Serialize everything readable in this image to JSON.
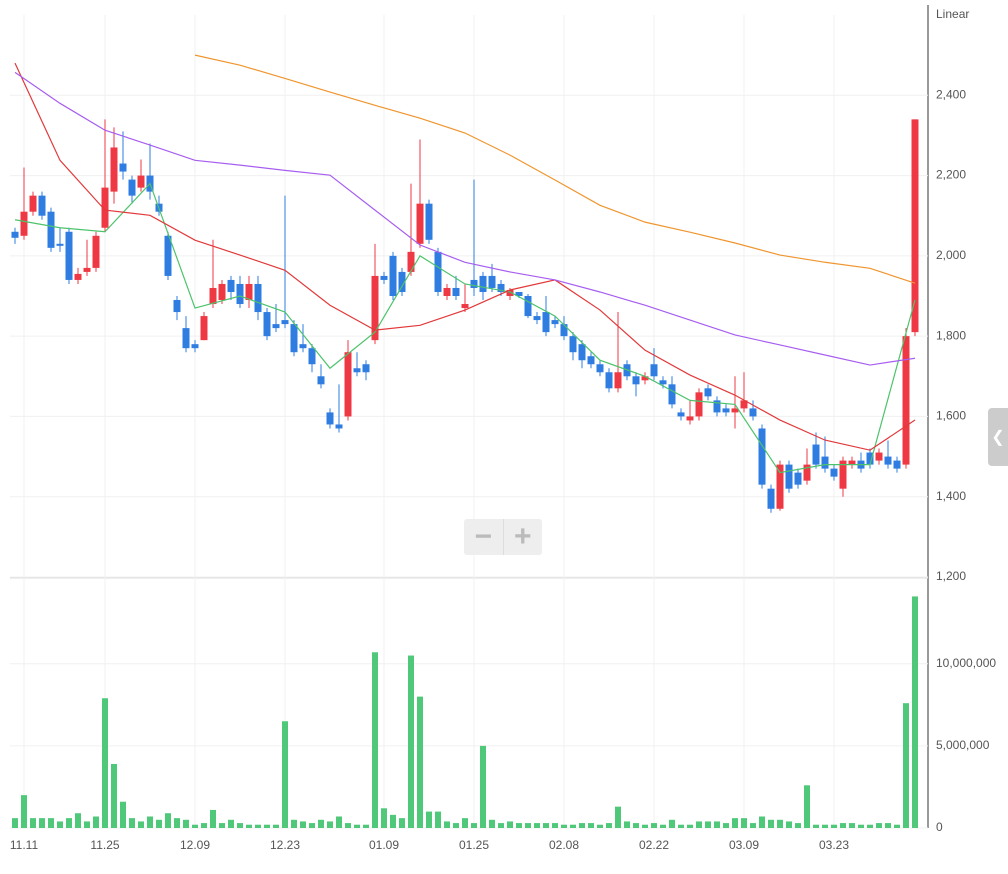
{
  "chart_data": [
    {
      "type": "candlestick",
      "scale_label": "Linear",
      "categories": [
        null,
        "11.11",
        null,
        null,
        null,
        null,
        null,
        null,
        null,
        null,
        "11.25",
        null,
        null,
        null,
        null,
        null,
        null,
        null,
        null,
        null,
        "12.09",
        null,
        null,
        null,
        null,
        null,
        null,
        null,
        null,
        null,
        "12.23",
        null,
        null,
        null,
        null,
        null,
        null,
        null,
        null,
        null,
        null,
        "01.09",
        null,
        null,
        null,
        null,
        null,
        null,
        null,
        null,
        null,
        "01.25",
        null,
        null,
        null,
        null,
        null,
        null,
        null,
        null,
        null,
        "02.08",
        null,
        null,
        null,
        null,
        null,
        null,
        null,
        null,
        null,
        "02.22",
        null,
        null,
        null,
        null,
        null,
        null,
        null,
        null,
        null,
        "03.09",
        null,
        null,
        null,
        null,
        null,
        null,
        null,
        null,
        null,
        "03.23",
        null,
        null,
        null,
        null,
        null,
        null,
        null,
        null,
        null
      ],
      "open": [
        2060,
        2050,
        2110,
        2150,
        2110,
        2030,
        2060,
        1940,
        1960,
        1970,
        2070,
        2160,
        2230,
        2190,
        2170,
        2200,
        2130,
        2050,
        1890,
        1820,
        1780,
        1790,
        1880,
        1890,
        1940,
        1930,
        1890,
        1930,
        1860,
        1830,
        1840,
        1830,
        1780,
        1770,
        1700,
        1610,
        1580,
        1600,
        1720,
        1730,
        1790,
        1950,
        2000,
        1960,
        1960,
        2030,
        2130,
        2010,
        1900,
        1920,
        1870,
        1940,
        1950,
        1950,
        1930,
        1900,
        1910,
        1900,
        1850,
        1860,
        1840,
        1830,
        1800,
        1780,
        1750,
        1730,
        1710,
        1670,
        1730,
        1700,
        1690,
        1730,
        1690,
        1680,
        1610,
        1590,
        1600,
        1670,
        1640,
        1620,
        1610,
        1620,
        1620,
        1570,
        1420,
        1370,
        1480,
        1460,
        1440,
        1530,
        1500,
        1470,
        1420,
        1480,
        1490,
        1510,
        1490,
        1500,
        1490,
        1480,
        1810
      ],
      "close": [
        2045,
        2110,
        2150,
        2100,
        2020,
        2025,
        1940,
        1955,
        1970,
        2050,
        2170,
        2270,
        2210,
        2150,
        2200,
        2160,
        2110,
        1950,
        1860,
        1770,
        1770,
        1850,
        1920,
        1930,
        1910,
        1880,
        1930,
        1860,
        1800,
        1820,
        1830,
        1760,
        1770,
        1730,
        1680,
        1580,
        1570,
        1760,
        1710,
        1710,
        1950,
        1940,
        1900,
        1910,
        2010,
        2130,
        2040,
        1910,
        1920,
        1900,
        1880,
        1920,
        1910,
        1920,
        1910,
        1915,
        1900,
        1850,
        1840,
        1810,
        1830,
        1800,
        1760,
        1740,
        1730,
        1710,
        1670,
        1710,
        1700,
        1680,
        1700,
        1700,
        1680,
        1630,
        1600,
        1600,
        1660,
        1650,
        1610,
        1610,
        1620,
        1640,
        1600,
        1430,
        1370,
        1480,
        1420,
        1430,
        1480,
        1480,
        1470,
        1450,
        1490,
        1490,
        1470,
        1480,
        1510,
        1480,
        1470,
        1800,
        2340
      ],
      "high": [
        2070,
        2220,
        2160,
        2160,
        2120,
        2070,
        2070,
        1970,
        2040,
        2060,
        2340,
        2320,
        2310,
        2200,
        2240,
        2280,
        2150,
        2060,
        1900,
        1850,
        1790,
        1860,
        2040,
        1940,
        1950,
        1950,
        1950,
        1950,
        1870,
        1880,
        2150,
        1840,
        1830,
        1780,
        1730,
        1620,
        1680,
        1790,
        1760,
        1740,
        2030,
        1960,
        2010,
        1970,
        2180,
        2290,
        2140,
        2020,
        1930,
        1950,
        1930,
        2190,
        1960,
        1980,
        1940,
        1920,
        1910,
        1905,
        1860,
        1900,
        1850,
        1850,
        1810,
        1790,
        1760,
        1740,
        1720,
        1860,
        1740,
        1710,
        1710,
        1770,
        1700,
        1700,
        1620,
        1640,
        1670,
        1680,
        1650,
        1630,
        1700,
        1710,
        1640,
        1580,
        1430,
        1490,
        1490,
        1470,
        1520,
        1560,
        1550,
        1480,
        1500,
        1500,
        1510,
        1520,
        1520,
        1540,
        1500,
        1820,
        2340
      ],
      "low": [
        2030,
        2040,
        2100,
        2090,
        2010,
        2010,
        1930,
        1930,
        1950,
        1960,
        2060,
        2130,
        2190,
        2130,
        2160,
        2140,
        2100,
        1940,
        1840,
        1760,
        1760,
        1790,
        1870,
        1880,
        1890,
        1870,
        1870,
        1840,
        1790,
        1810,
        1820,
        1750,
        1760,
        1710,
        1670,
        1570,
        1560,
        1590,
        1700,
        1690,
        1780,
        1930,
        1890,
        1900,
        1950,
        2020,
        2030,
        1900,
        1890,
        1890,
        1860,
        1900,
        1890,
        1910,
        1900,
        1890,
        1895,
        1845,
        1830,
        1800,
        1820,
        1790,
        1740,
        1720,
        1720,
        1700,
        1660,
        1660,
        1690,
        1650,
        1680,
        1690,
        1670,
        1620,
        1590,
        1580,
        1590,
        1640,
        1600,
        1600,
        1570,
        1610,
        1590,
        1420,
        1360,
        1365,
        1410,
        1420,
        1430,
        1470,
        1460,
        1440,
        1400,
        1470,
        1460,
        1470,
        1480,
        1470,
        1460,
        1470,
        1800
      ],
      "up_color": "#ee3844",
      "down_color": "#2f7de1",
      "lines": [
        {
          "color": "#4cc36b",
          "x": [
            0,
            5,
            10,
            15,
            20,
            25,
            30,
            35,
            40,
            45,
            50,
            55,
            60,
            65,
            70,
            75,
            80,
            85,
            90,
            95,
            100
          ],
          "values": [
            2090,
            2070,
            2060,
            2180,
            1870,
            1900,
            1860,
            1720,
            1810,
            2000,
            1930,
            1910,
            1850,
            1740,
            1700,
            1640,
            1630,
            1460,
            1480,
            1480,
            1890
          ]
        },
        {
          "color": "#e2393a",
          "x": [
            0,
            5,
            10,
            15,
            20,
            25,
            30,
            35,
            40,
            45,
            50,
            55,
            60,
            65,
            70,
            75,
            80,
            85,
            90,
            95,
            100
          ],
          "values": [
            2480,
            2238,
            2114,
            2101,
            2039,
            2002,
            1964,
            1877,
            1815,
            1827,
            1865,
            1915,
            1940,
            1865,
            1765,
            1703,
            1653,
            1591,
            1541,
            1516,
            1591
          ]
        },
        {
          "color": "#a75ef0",
          "x": [
            0,
            5,
            10,
            15,
            20,
            25,
            30,
            35,
            40,
            45,
            50,
            55,
            60,
            65,
            70,
            75,
            80,
            85,
            90,
            95,
            100
          ],
          "values": [
            2457,
            2380,
            2313,
            2276,
            2238,
            2226,
            2213,
            2201,
            2114,
            2027,
            1984,
            1960,
            1940,
            1910,
            1877,
            1840,
            1803,
            1778,
            1753,
            1728,
            1745
          ]
        },
        {
          "color": "#f0952e",
          "x": [
            20,
            25,
            30,
            35,
            40,
            45,
            50,
            55,
            60,
            65,
            70,
            75,
            80,
            85,
            90,
            95,
            100
          ],
          "values": [
            2500,
            2475,
            2442,
            2408,
            2375,
            2343,
            2306,
            2251,
            2189,
            2126,
            2084,
            2059,
            2032,
            2002,
            1984,
            1969,
            1932
          ]
        }
      ],
      "ylim": [
        1200,
        2600
      ],
      "yticks": [
        {
          "value": 1200,
          "label": "1,200"
        },
        {
          "value": 1400,
          "label": "1,400"
        },
        {
          "value": 1600,
          "label": "1,600"
        },
        {
          "value": 1800,
          "label": "1,800"
        },
        {
          "value": 2000,
          "label": "2,000"
        },
        {
          "value": 2200,
          "label": "2,200"
        },
        {
          "value": 2400,
          "label": "2,400"
        }
      ],
      "grid": true
    },
    {
      "type": "bar",
      "color": "#4fc87a",
      "values": [
        600000,
        2000000,
        600000,
        600000,
        600000,
        400000,
        600000,
        900000,
        400000,
        700000,
        7900000,
        3900000,
        1600000,
        600000,
        400000,
        700000,
        500000,
        900000,
        600000,
        500000,
        200000,
        300000,
        1100000,
        300000,
        500000,
        300000,
        200000,
        200000,
        200000,
        200000,
        6500000,
        500000,
        400000,
        300000,
        500000,
        400000,
        700000,
        300000,
        200000,
        200000,
        10700000,
        1200000,
        800000,
        600000,
        10500000,
        8000000,
        1000000,
        1000000,
        400000,
        300000,
        600000,
        300000,
        5000000,
        500000,
        300000,
        400000,
        300000,
        300000,
        300000,
        300000,
        300000,
        200000,
        200000,
        300000,
        300000,
        200000,
        300000,
        1300000,
        400000,
        300000,
        200000,
        300000,
        200000,
        500000,
        200000,
        200000,
        400000,
        400000,
        400000,
        300000,
        600000,
        600000,
        300000,
        700000,
        500000,
        500000,
        400000,
        300000,
        2600000,
        200000,
        200000,
        200000,
        300000,
        300000,
        200000,
        200000,
        300000,
        300000,
        200000,
        7600000,
        14100000
      ],
      "ylim": [
        0,
        15100000
      ],
      "yticks": [
        0,
        {
          "value": 5000000,
          "label": "5,000,000"
        },
        {
          "value": 10000000,
          "label": "10,000,000"
        }
      ],
      "grid": true
    }
  ]
}
